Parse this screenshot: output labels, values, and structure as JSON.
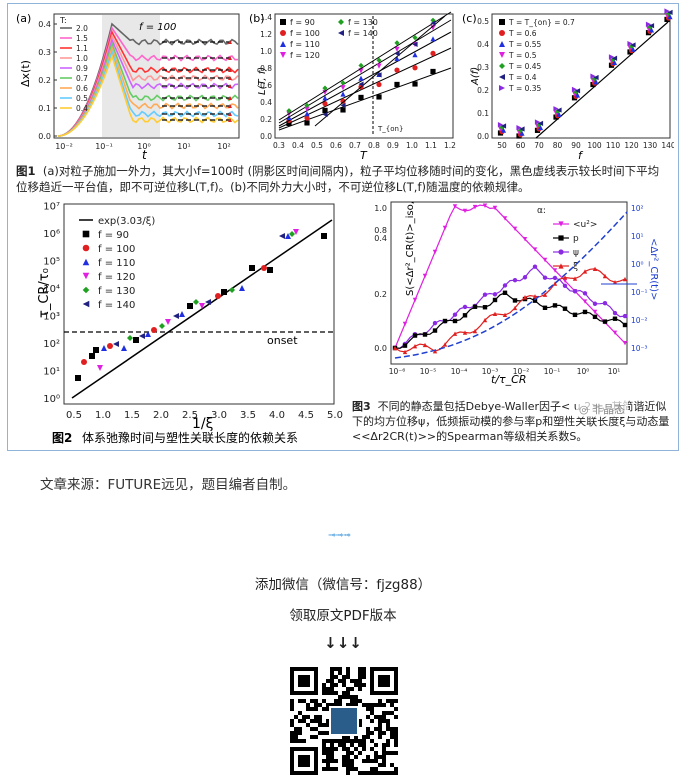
{
  "fig1": {
    "a": {
      "label": "(a)",
      "ylabel": "Δx(t)",
      "xlabel": "t",
      "annotation": "f = 100",
      "legend_title": "T:",
      "legend": [
        "2.0",
        "1.5",
        "1.1",
        "1.0",
        "0.9",
        "0.7",
        "0.6",
        "0.5",
        "0.4"
      ],
      "colors": [
        "#666666",
        "#ff66cc",
        "#ff3333",
        "#ff9999",
        "#cc66ff",
        "#66cc66",
        "#ffaa55",
        "#66ccff",
        "#ffcc33"
      ],
      "yticks": [
        "0.0",
        "0.1",
        "0.2",
        "0.3",
        "0.4"
      ],
      "xticks": [
        "10⁻²",
        "10⁻¹",
        "10⁰",
        "10¹",
        "10²"
      ]
    },
    "b": {
      "label": "(b)",
      "ylabel": "L(T, f)",
      "xlabel": "T",
      "legend": [
        {
          "name": "f = 90",
          "color": "#000000",
          "shape": "square"
        },
        {
          "name": "f = 100",
          "color": "#e02020",
          "shape": "circle"
        },
        {
          "name": "f = 110",
          "color": "#2030e0",
          "shape": "triangle"
        },
        {
          "name": "f = 120",
          "color": "#e020e0",
          "shape": "tridown"
        },
        {
          "name": "f = 130",
          "color": "#20a020",
          "shape": "diamond"
        },
        {
          "name": "f = 140",
          "color": "#202080",
          "shape": "trileft"
        }
      ],
      "marker_label": "T_{on}",
      "yticks": [
        "0.0",
        "0.2",
        "0.4",
        "0.6",
        "0.8",
        "1.0",
        "1.2",
        "1.4"
      ],
      "xticks": [
        "0.3",
        "0.4",
        "0.5",
        "0.6",
        "0.7",
        "0.8",
        "0.9",
        "1.0",
        "1.1",
        "1.2"
      ]
    },
    "c": {
      "label": "(c)",
      "ylabel": "A(f)",
      "xlabel": "f",
      "legend": [
        {
          "name": "T = T_{on} = 0.7",
          "color": "#000000",
          "shape": "square"
        },
        {
          "name": "T = 0.6",
          "color": "#e02020",
          "shape": "circle"
        },
        {
          "name": "T = 0.55",
          "color": "#2030e0",
          "shape": "triangle"
        },
        {
          "name": "T = 0.5",
          "color": "#e020e0",
          "shape": "tridown"
        },
        {
          "name": "T = 0.45",
          "color": "#20a020",
          "shape": "diamond"
        },
        {
          "name": "T = 0.4",
          "color": "#202080",
          "shape": "trileft"
        },
        {
          "name": "T = 0.35",
          "color": "#8a2be2",
          "shape": "triright"
        }
      ],
      "yticks": [
        "0.0",
        "0.1",
        "0.2",
        "0.3",
        "0.4",
        "0.5"
      ],
      "xticks": [
        "50",
        "60",
        "70",
        "80",
        "90",
        "100",
        "110",
        "120",
        "130",
        "140"
      ]
    },
    "caption_label": "图1",
    "caption_text": "(a)对粒子施加一外力，其大小f=100时 (阴影区时间间隔内)，粒子平均位移随时间的变化，黑色虚线表示较长时间下平均位移趋近一平台值，即不可逆位移L(T,f)。(b)不同外力大小时，不可逆位移L(T,f)随温度的依赖规律。"
  },
  "fig2": {
    "ylabel": "τ_CR/τ₀",
    "xlabel": "1/ξ",
    "legend": [
      {
        "name": "exp(3.03/ξ)",
        "color": "#000000",
        "shape": "line"
      },
      {
        "name": "f = 90",
        "color": "#000000",
        "shape": "square"
      },
      {
        "name": "f = 100",
        "color": "#e02020",
        "shape": "circle"
      },
      {
        "name": "f = 110",
        "color": "#2030e0",
        "shape": "triangle"
      },
      {
        "name": "f = 120",
        "color": "#e020e0",
        "shape": "tridown"
      },
      {
        "name": "f = 130",
        "color": "#20a020",
        "shape": "diamond"
      },
      {
        "name": "f = 140",
        "color": "#202080",
        "shape": "trileft"
      }
    ],
    "onset_label": "onset",
    "yticks": [
      "10⁰",
      "10¹",
      "10²",
      "10³",
      "10⁴",
      "10⁵",
      "10⁶",
      "10⁷"
    ],
    "xticks": [
      "0.5",
      "1.0",
      "1.5",
      "2.0",
      "2.5",
      "3.0",
      "3.5",
      "4.0",
      "4.5",
      "5.0"
    ],
    "caption_label": "图2",
    "caption_text": "体系弛豫时间与塑性关联长度的依赖关系"
  },
  "fig3": {
    "ylabel": "S(<Δr²_CR(t)>_iso, α)",
    "ylabel_right": "<Δr²_CR(t)>",
    "xlabel": "t/τ_CR",
    "legend": [
      {
        "name": "α:",
        "color": "#000000",
        "shape": "none"
      },
      {
        "name": "<u²>",
        "color": "#e020e0",
        "shape": "tridown"
      },
      {
        "name": "p",
        "color": "#000000",
        "shape": "square"
      },
      {
        "name": "ψ",
        "color": "#8a2be2",
        "shape": "circle"
      },
      {
        "name": "ξ",
        "color": "#e02020",
        "shape": "triangle"
      }
    ],
    "yticks": [
      "0.0",
      "0.2",
      "0.4",
      "0.8",
      "1.0"
    ],
    "xticks": [
      "10⁻⁶",
      "10⁻⁵",
      "10⁻⁴",
      "10⁻³",
      "10⁻²",
      "10⁻¹",
      "10⁰",
      "10¹"
    ],
    "right_ticks": [
      "10²",
      "10¹",
      "10⁰",
      "10⁻¹",
      "10⁻²",
      "10⁻³"
    ],
    "caption_label": "图3",
    "caption_text": "不同的静态量包括Debye-Waller因子< u 2>，其简谐近似下的均方位移ψ，低频振动模的参与率p和塑性关联长度ξ与动态量<<Δr2CR(t)>>的Spearman等级相关系数S。",
    "watermark": "非晶态"
  },
  "footer": {
    "source": "文章来源：FUTURE远见，题目编者自制。",
    "arrows": "➟➟➟",
    "wechat": "添加微信（微信号：fjzg88）",
    "pdf": "领取原文PDF版本",
    "down_arrows": "↓↓↓"
  }
}
